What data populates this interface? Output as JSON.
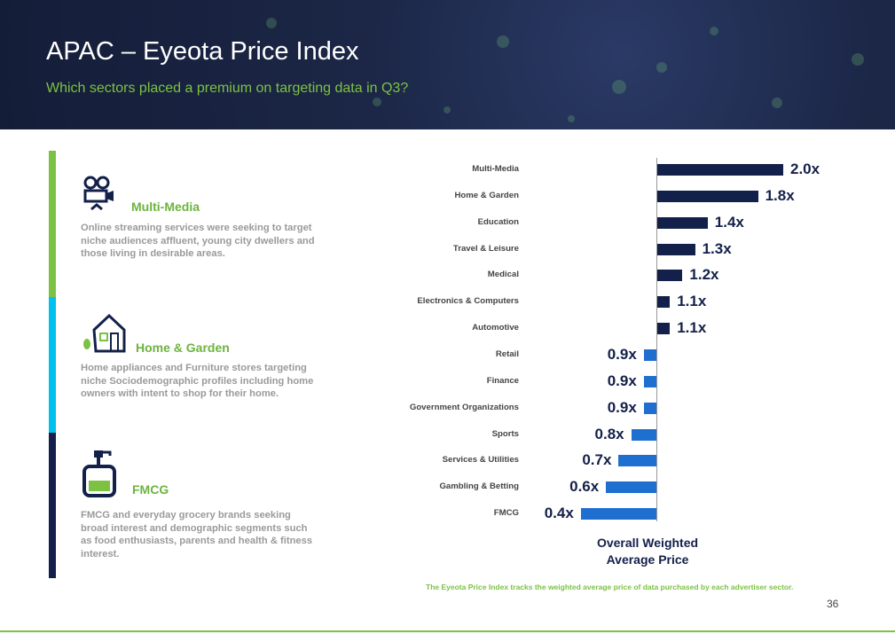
{
  "header": {
    "title": "APAC – Eyeota Price Index",
    "subtitle": "Which sectors placed a premium on targeting data in Q3?"
  },
  "sections": [
    {
      "title": "Multi-Media",
      "icon": "film-camera-icon",
      "color": "#7cc242",
      "desc": "Online streaming services were seeking to target niche audiences affluent, young city dwellers and those living in desirable areas."
    },
    {
      "title": "Home & Garden",
      "icon": "house-icon",
      "color": "#00c0f0",
      "desc": "Home appliances and Furniture stores targeting niche Sociodemographic profiles including home owners with intent to shop for their home."
    },
    {
      "title": "FMCG",
      "icon": "soap-bottle-icon",
      "color": "#13204a",
      "desc": "FMCG and everyday grocery brands seeking broad interest and demographic segments such as food enthusiasts, parents and health & fitness interest."
    }
  ],
  "chart_data": {
    "type": "bar",
    "orientation": "horizontal",
    "baseline": 1.0,
    "categories": [
      "Multi-Media",
      "Home & Garden",
      "Education",
      "Travel & Leisure",
      "Medical",
      "Electronics & Computers",
      "Automotive",
      "Retail",
      "Finance",
      "Government Organizations",
      "Sports",
      "Services & Utilities",
      "Gambling & Betting",
      "FMCG"
    ],
    "values": [
      2.0,
      1.8,
      1.4,
      1.3,
      1.2,
      1.1,
      1.1,
      0.9,
      0.9,
      0.9,
      0.8,
      0.7,
      0.6,
      0.4
    ],
    "labels": [
      "2.0x",
      "1.8x",
      "1.4x",
      "1.3x",
      "1.2x",
      "1.1x",
      "1.1x",
      "0.9x",
      "0.9x",
      "0.9x",
      "0.8x",
      "0.7x",
      "0.6x",
      "0.4x"
    ],
    "xlabel": "Overall Weighted Average Price",
    "colors": {
      "above": "#13204a",
      "below": "#1f6fd1"
    }
  },
  "footer": {
    "note": "The Eyeota Price Index tracks the weighted average price of data purchased by each advertiser sector.",
    "page": "36"
  }
}
